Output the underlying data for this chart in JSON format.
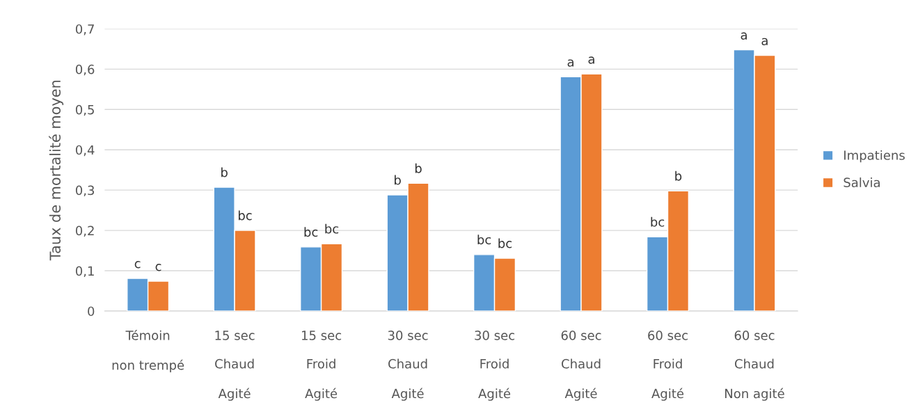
{
  "chart_data": {
    "type": "bar",
    "ylabel": "Taux de mortalité moyen",
    "categories": [
      "Témoin\nnon trempé",
      "15 sec\nChaud\nAgité",
      "15 sec\nFroid\nAgité",
      "30 sec\nChaud\nAgité",
      "30 sec\nFroid\nAgité",
      "60 sec\nChaud\nAgité",
      "60 sec\nFroid\nAgité",
      "60 sec\nChaud\nNon agité"
    ],
    "series": [
      {
        "name": "Impatiens",
        "color": "#5b9bd5",
        "values": [
          0.081,
          0.307,
          0.159,
          0.288,
          0.14,
          0.581,
          0.184,
          0.648
        ],
        "value_labels": [
          "c",
          "b",
          "bc",
          "b",
          "bc",
          "a",
          "bc",
          "a"
        ]
      },
      {
        "name": "Salvia",
        "color": "#ed7d31",
        "values": [
          0.074,
          0.2,
          0.167,
          0.317,
          0.131,
          0.588,
          0.298,
          0.634
        ],
        "value_labels": [
          "c",
          "bc",
          "bc",
          "b",
          "bc",
          "a",
          "b",
          "a"
        ]
      }
    ],
    "ylim": [
      0,
      0.7
    ],
    "yticks": [
      0,
      {
        "value": 0.1,
        "label": "0,1"
      },
      {
        "value": 0.2,
        "label": "0,2"
      },
      {
        "value": 0.3,
        "label": "0,3"
      },
      {
        "value": 0.4,
        "label": "0,4"
      },
      {
        "value": 0.5,
        "label": "0,5"
      },
      {
        "value": 0.6,
        "label": "0,6"
      },
      {
        "value": 0.7,
        "label": "0,7"
      }
    ],
    "grid": "y",
    "legend": "right"
  }
}
